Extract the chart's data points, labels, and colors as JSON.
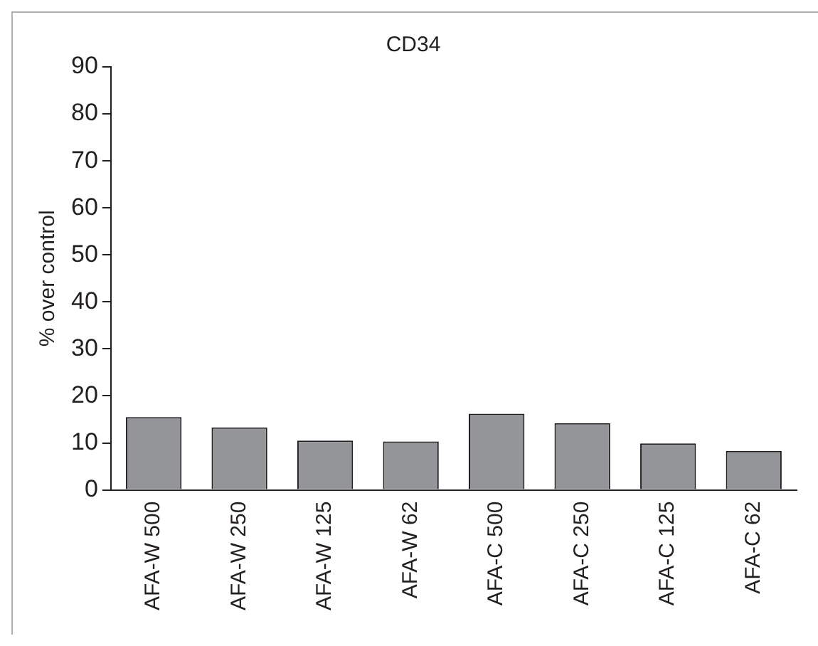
{
  "chart_data": {
    "type": "bar",
    "title": "CD34",
    "ylabel": "% over control",
    "categories": [
      "AFA-W 500",
      "AFA-W 250",
      "AFA-W 125",
      "AFA-W 62",
      "AFA-C 500",
      "AFA-C 250",
      "AFA-C 125",
      "AFA-C 62"
    ],
    "values": [
      15.5,
      13.3,
      10.5,
      10.3,
      16.2,
      14.2,
      9.9,
      8.3
    ],
    "color": "#939598",
    "ylim": [
      0,
      90
    ],
    "yticks": [
      0,
      10,
      20,
      30,
      40,
      50,
      60,
      70,
      80,
      90
    ],
    "grid": false,
    "legend": false
  }
}
